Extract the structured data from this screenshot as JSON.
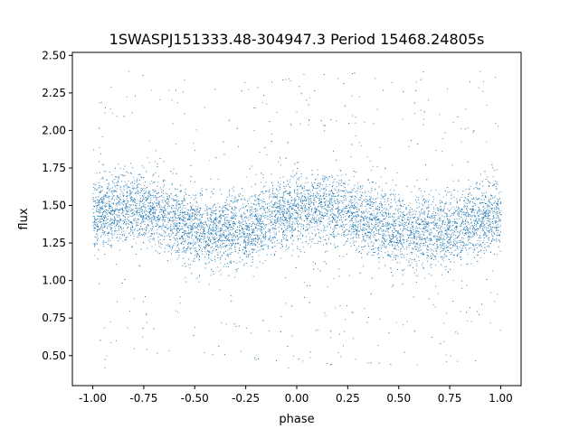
{
  "chart_data": {
    "type": "scatter",
    "title": "1SWASPJ151333.48-304947.3 Period 15468.24805s",
    "xlabel": "phase",
    "ylabel": "flux",
    "xlim": [
      -1.1,
      1.1
    ],
    "ylim": [
      0.3,
      2.52
    ],
    "x_ticks": [
      "-1.00",
      "-0.75",
      "-0.50",
      "-0.25",
      "0.00",
      "0.25",
      "0.50",
      "0.75",
      "1.00"
    ],
    "y_ticks": [
      "0.50",
      "0.75",
      "1.00",
      "1.25",
      "1.50",
      "1.75",
      "2.00",
      "2.25",
      "2.50"
    ],
    "grid": false,
    "point_color": "#1f77b4",
    "series": [
      {
        "x": [
          -1.0,
          -0.95,
          -0.9,
          -0.85,
          -0.8,
          -0.75,
          -0.7,
          -0.65,
          -0.6,
          -0.55,
          -0.5,
          -0.45,
          -0.4,
          -0.35,
          -0.3,
          -0.25,
          -0.2,
          -0.15,
          -0.1,
          -0.05,
          0.0,
          0.05,
          0.1,
          0.15,
          0.2,
          0.25,
          0.3,
          0.35,
          0.4,
          0.45,
          0.5,
          0.55,
          0.6,
          0.65,
          0.7,
          0.75,
          0.8,
          0.85,
          0.9,
          0.95,
          1.0
        ],
        "y": [
          1.44,
          1.46,
          1.48,
          1.49,
          1.49,
          1.48,
          1.46,
          1.43,
          1.41,
          1.38,
          1.36,
          1.34,
          1.33,
          1.33,
          1.34,
          1.35,
          1.37,
          1.4,
          1.43,
          1.45,
          1.47,
          1.48,
          1.49,
          1.49,
          1.48,
          1.46,
          1.43,
          1.41,
          1.38,
          1.36,
          1.34,
          1.33,
          1.33,
          1.34,
          1.35,
          1.36,
          1.37,
          1.39,
          1.41,
          1.43,
          1.44
        ],
        "spread": 0.12,
        "samples": 9000
      }
    ]
  }
}
